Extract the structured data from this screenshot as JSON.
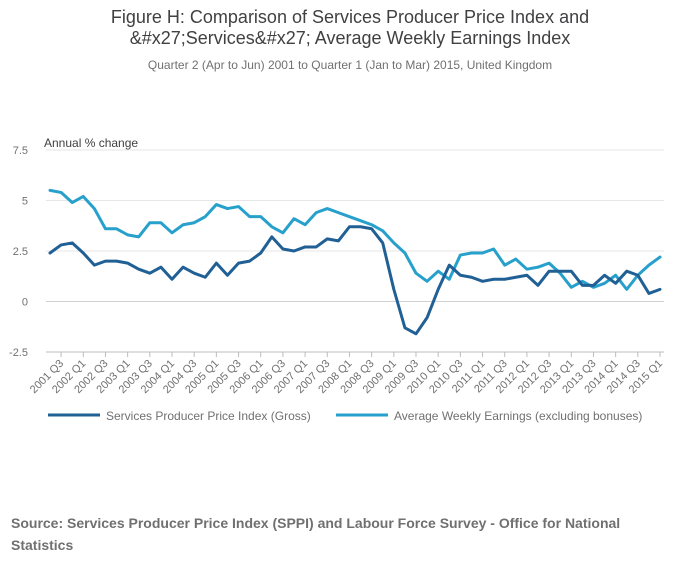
{
  "title_line1": "Figure H: Comparison of Services Producer Price Index and",
  "title_line2": "&#x27;Services&#x27; Average Weekly Earnings Index",
  "subtitle": "Quarter 2 (Apr to Jun) 2001 to Quarter 1 (Jan to Mar) 2015, United Kingdom",
  "source": "Source: Services Producer Price Index (SPPI) and Labour Force Survey - Office for National Statistics",
  "colors": {
    "sppi": "#206095",
    "awe": "#27a0cc",
    "grid": "#e6e6e6",
    "axis": "#bcbcbc",
    "text": "#707071"
  },
  "chart_data": {
    "type": "line",
    "ylabel": "Annual % change",
    "ylim": [
      -2.5,
      7.5
    ],
    "yticks": [
      -2.5,
      0,
      2.5,
      5,
      7.5
    ],
    "ytick_labels": [
      "-2.5",
      "0",
      "2.5",
      "5",
      "7.5"
    ],
    "grid": true,
    "legend_position": "bottom",
    "x": [
      "2001 Q2",
      "2001 Q3",
      "2001 Q4",
      "2002 Q1",
      "2002 Q2",
      "2002 Q3",
      "2002 Q4",
      "2003 Q1",
      "2003 Q2",
      "2003 Q3",
      "2003 Q4",
      "2004 Q1",
      "2004 Q2",
      "2004 Q3",
      "2004 Q4",
      "2005 Q1",
      "2005 Q2",
      "2005 Q3",
      "2005 Q4",
      "2006 Q1",
      "2006 Q2",
      "2006 Q3",
      "2006 Q4",
      "2007 Q1",
      "2007 Q2",
      "2007 Q3",
      "2007 Q4",
      "2008 Q1",
      "2008 Q2",
      "2008 Q3",
      "2008 Q4",
      "2009 Q1",
      "2009 Q2",
      "2009 Q3",
      "2009 Q4",
      "2010 Q1",
      "2010 Q2",
      "2010 Q3",
      "2010 Q4",
      "2011 Q1",
      "2011 Q2",
      "2011 Q3",
      "2011 Q4",
      "2012 Q1",
      "2012 Q2",
      "2012 Q3",
      "2012 Q4",
      "2013 Q1",
      "2013 Q2",
      "2013 Q3",
      "2013 Q4",
      "2014 Q1",
      "2014 Q2",
      "2014 Q3",
      "2014 Q4",
      "2015 Q1"
    ],
    "xtick_labels": [
      "2001 Q3",
      "2002 Q1",
      "2002 Q3",
      "2003 Q1",
      "2003 Q3",
      "2004 Q1",
      "2004 Q3",
      "2005 Q1",
      "2005 Q3",
      "2006 Q1",
      "2006 Q3",
      "2007 Q1",
      "2007 Q3",
      "2008 Q1",
      "2008 Q3",
      "2009 Q1",
      "2009 Q3",
      "2010 Q1",
      "2010 Q3",
      "2011 Q1",
      "2011 Q3",
      "2012 Q1",
      "2012 Q3",
      "2013 Q1",
      "2013 Q3",
      "2014 Q1",
      "2014 Q3",
      "2015 Q1"
    ],
    "series": [
      {
        "name": "Services Producer Price Index (Gross)",
        "color": "#206095",
        "values": [
          2.4,
          2.8,
          2.9,
          2.4,
          1.8,
          2.0,
          2.0,
          1.9,
          1.6,
          1.4,
          1.7,
          1.1,
          1.7,
          1.4,
          1.2,
          1.9,
          1.3,
          1.9,
          2.0,
          2.4,
          3.2,
          2.6,
          2.5,
          2.7,
          2.7,
          3.1,
          3.0,
          3.7,
          3.7,
          3.6,
          2.9,
          0.6,
          -1.3,
          -1.6,
          -0.8,
          0.6,
          1.8,
          1.3,
          1.2,
          1.0,
          1.1,
          1.1,
          1.2,
          1.3,
          0.8,
          1.5,
          1.5,
          1.5,
          0.8,
          0.8,
          1.3,
          0.9,
          1.5,
          1.3,
          0.4,
          0.6
        ]
      },
      {
        "name": "Average Weekly Earnings (excluding bonuses)",
        "color": "#27a0cc",
        "values": [
          5.5,
          5.4,
          4.9,
          5.2,
          4.6,
          3.6,
          3.6,
          3.3,
          3.2,
          3.9,
          3.9,
          3.4,
          3.8,
          3.9,
          4.2,
          4.8,
          4.6,
          4.7,
          4.2,
          4.2,
          3.7,
          3.4,
          4.1,
          3.8,
          4.4,
          4.6,
          4.4,
          4.2,
          4.0,
          3.8,
          3.5,
          2.9,
          2.4,
          1.4,
          1.0,
          1.5,
          1.1,
          2.3,
          2.4,
          2.4,
          2.6,
          1.8,
          2.1,
          1.6,
          1.7,
          1.9,
          1.4,
          0.7,
          1.0,
          0.7,
          0.9,
          1.3,
          0.6,
          1.3,
          1.8,
          2.2
        ]
      }
    ]
  }
}
